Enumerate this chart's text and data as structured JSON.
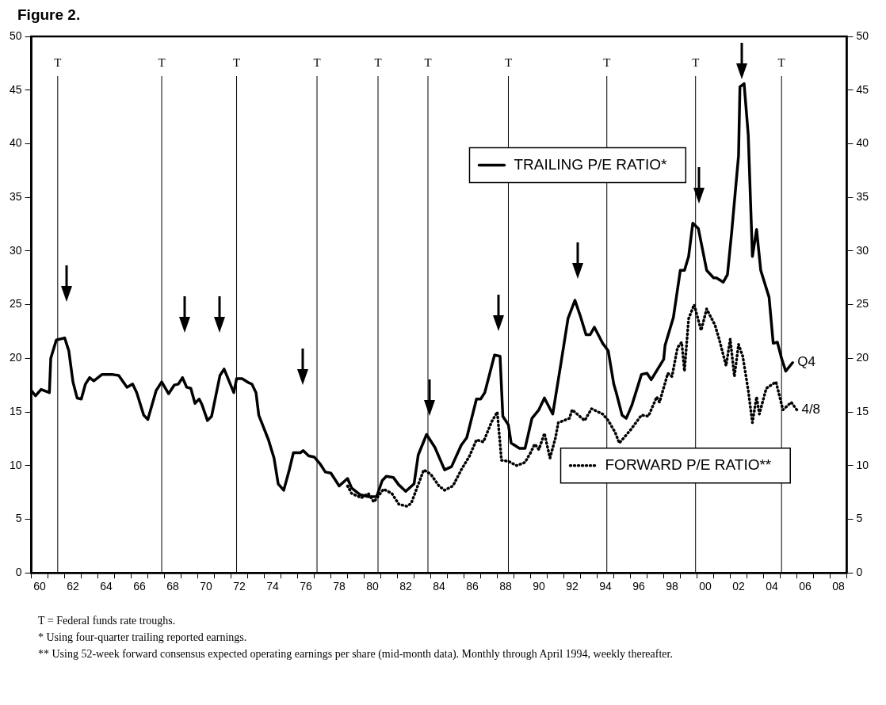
{
  "chart_data": {
    "type": "line",
    "title": "Figure 2.",
    "xlim": [
      "1960",
      "2009"
    ],
    "xticks": [
      {
        "value": "1960",
        "label": null
      },
      {
        "value": "1960-07",
        "label": "60"
      },
      {
        "value": "1961",
        "label": null
      },
      {
        "value": "1962",
        "label": null
      },
      {
        "value": "1962-07",
        "label": "62"
      },
      {
        "value": "1963",
        "label": null
      },
      {
        "value": "1964",
        "label": null
      },
      {
        "value": "1964-07",
        "label": "64"
      },
      {
        "value": "1965",
        "label": null
      },
      {
        "value": "1966",
        "label": null
      },
      {
        "value": "1966-07",
        "label": "66"
      },
      {
        "value": "1967",
        "label": null
      },
      {
        "value": "1968",
        "label": null
      },
      {
        "value": "1968-07",
        "label": "68"
      },
      {
        "value": "1969",
        "label": null
      },
      {
        "value": "1970",
        "label": null
      },
      {
        "value": "1970-07",
        "label": "70"
      },
      {
        "value": "1971",
        "label": null
      },
      {
        "value": "1972",
        "label": null
      },
      {
        "value": "1972-07",
        "label": "72"
      },
      {
        "value": "1973",
        "label": null
      },
      {
        "value": "1974",
        "label": null
      },
      {
        "value": "1974-07",
        "label": "74"
      },
      {
        "value": "1975",
        "label": null
      },
      {
        "value": "1976",
        "label": null
      },
      {
        "value": "1976-07",
        "label": "76"
      },
      {
        "value": "1977",
        "label": null
      },
      {
        "value": "1978",
        "label": null
      },
      {
        "value": "1978-07",
        "label": "78"
      },
      {
        "value": "1979",
        "label": null
      },
      {
        "value": "1980",
        "label": null
      },
      {
        "value": "1980-07",
        "label": "80"
      },
      {
        "value": "1981",
        "label": null
      },
      {
        "value": "1982",
        "label": null
      },
      {
        "value": "1982-07",
        "label": "82"
      },
      {
        "value": "1983",
        "label": null
      },
      {
        "value": "1984",
        "label": null
      },
      {
        "value": "1984-07",
        "label": "84"
      },
      {
        "value": "1985",
        "label": null
      },
      {
        "value": "1986",
        "label": null
      },
      {
        "value": "1986-07",
        "label": "86"
      },
      {
        "value": "1987",
        "label": null
      },
      {
        "value": "1988",
        "label": null
      },
      {
        "value": "1988-07",
        "label": "88"
      },
      {
        "value": "1989",
        "label": null
      },
      {
        "value": "1990",
        "label": null
      },
      {
        "value": "1990-07",
        "label": "90"
      },
      {
        "value": "1991",
        "label": null
      },
      {
        "value": "1992",
        "label": null
      },
      {
        "value": "1992-07",
        "label": "92"
      },
      {
        "value": "1993",
        "label": null
      },
      {
        "value": "1994",
        "label": null
      },
      {
        "value": "1994-07",
        "label": "94"
      },
      {
        "value": "1995",
        "label": null
      },
      {
        "value": "1996",
        "label": null
      },
      {
        "value": "1996-07",
        "label": "96"
      },
      {
        "value": "1997",
        "label": null
      },
      {
        "value": "1998",
        "label": null
      },
      {
        "value": "1998-07",
        "label": "98"
      },
      {
        "value": "1999",
        "label": null
      },
      {
        "value": "2000",
        "label": null
      },
      {
        "value": "2000-07",
        "label": "00"
      },
      {
        "value": "2001",
        "label": null
      },
      {
        "value": "2002",
        "label": null
      },
      {
        "value": "2002-07",
        "label": "02"
      },
      {
        "value": "2003",
        "label": null
      },
      {
        "value": "2004",
        "label": null
      },
      {
        "value": "2004-07",
        "label": "04"
      },
      {
        "value": "2005",
        "label": null
      },
      {
        "value": "2006",
        "label": null
      },
      {
        "value": "2006-07",
        "label": "06"
      },
      {
        "value": "2007",
        "label": null
      },
      {
        "value": "2008",
        "label": null
      },
      {
        "value": "2008-07",
        "label": "08"
      },
      {
        "value": "2009",
        "label": null
      }
    ],
    "ylim": [
      0,
      50
    ],
    "yticks": [
      0,
      5,
      10,
      15,
      20,
      25,
      30,
      35,
      40,
      45,
      50
    ],
    "y2lim": [
      0,
      50
    ],
    "y2ticks": [
      0,
      5,
      10,
      15,
      20,
      25,
      30,
      35,
      40,
      45,
      50
    ],
    "grid": false,
    "legend": "right",
    "marker": "none",
    "series": [
      {
        "name": "TRAILING P/E RATIO*",
        "color": "#000000",
        "line_style": "solid",
        "x": [
          "1960-01",
          "1960-04",
          "1960-08",
          "1961-02",
          "1961-03",
          "1961-07",
          "1962-01",
          "1962-04",
          "1962-07",
          "1962-10",
          "1963-01",
          "1963-04",
          "1963-07",
          "1963-10",
          "1964-04",
          "1964-11",
          "1965-04",
          "1965-10",
          "1966-02",
          "1966-05",
          "1966-10",
          "1967-01",
          "1967-07",
          "1967-11",
          "1968-04",
          "1968-08",
          "1968-11",
          "1969-02",
          "1969-05",
          "1969-08",
          "1969-11",
          "1970-02",
          "1970-04",
          "1970-08",
          "1970-11",
          "1971-05",
          "1971-08",
          "1972-03",
          "1972-05",
          "1972-09",
          "1973-02",
          "1973-04",
          "1973-07",
          "1973-09",
          "1974-04",
          "1974-08",
          "1974-11",
          "1975-03",
          "1975-07",
          "1975-10",
          "1976-03",
          "1976-05",
          "1976-09",
          "1977-01",
          "1977-05",
          "1977-09",
          "1978-01",
          "1978-07",
          "1979-01",
          "1979-04",
          "1979-10",
          "1980-04",
          "1980-10",
          "1981-02",
          "1981-05",
          "1981-10",
          "1982-02",
          "1982-07",
          "1983-01",
          "1983-04",
          "1983-10",
          "1984-04",
          "1984-11",
          "1985-04",
          "1985-11",
          "1986-03",
          "1986-10",
          "1987-01",
          "1987-04",
          "1987-11",
          "1988-03",
          "1988-05",
          "1988-09",
          "1988-11",
          "1989-05",
          "1989-09",
          "1990-02",
          "1990-07",
          "1990-11",
          "1991-05",
          "1991-11",
          "1992-04",
          "1992-09",
          "1993-01",
          "1993-05",
          "1993-08",
          "1993-11",
          "1994-05",
          "1994-09",
          "1995-01",
          "1995-03",
          "1995-07",
          "1995-10",
          "1996-02",
          "1996-09",
          "1997-01",
          "1997-04",
          "1998-01",
          "1998-02",
          "1998-08",
          "1999-01",
          "1999-04",
          "1999-07",
          "1999-10",
          "2000-02",
          "2000-08",
          "2001-01",
          "2001-03",
          "2001-08",
          "2001-11",
          "2002-02",
          "2002-07",
          "2002-08",
          "2002-11",
          "2003-02",
          "2003-05",
          "2003-08",
          "2003-11",
          "2004-05",
          "2004-08",
          "2004-11",
          "2005-02",
          "2005-05",
          "2005-10"
        ],
        "values": [
          17.0,
          16.5,
          17.1,
          16.8,
          20.0,
          21.7,
          21.9,
          20.7,
          17.8,
          16.3,
          16.2,
          17.6,
          18.2,
          17.9,
          18.5,
          18.5,
          18.4,
          17.3,
          17.6,
          16.8,
          14.7,
          14.3,
          17.0,
          17.8,
          16.7,
          17.5,
          17.6,
          18.2,
          17.3,
          17.2,
          15.8,
          16.2,
          15.7,
          14.2,
          14.6,
          18.4,
          19.0,
          16.8,
          18.1,
          18.1,
          17.7,
          17.6,
          16.8,
          14.7,
          12.4,
          10.7,
          8.3,
          7.7,
          9.6,
          11.2,
          11.2,
          11.4,
          10.9,
          10.8,
          10.2,
          9.4,
          9.3,
          8.1,
          8.8,
          7.9,
          7.3,
          7.1,
          7.1,
          8.6,
          9.0,
          8.9,
          8.2,
          7.6,
          8.3,
          11.0,
          12.9,
          11.7,
          9.6,
          9.9,
          11.9,
          12.6,
          16.2,
          16.2,
          16.8,
          20.3,
          20.2,
          14.6,
          13.8,
          12.1,
          11.6,
          11.6,
          14.4,
          15.2,
          16.3,
          14.8,
          19.6,
          23.7,
          25.4,
          23.9,
          22.2,
          22.2,
          22.9,
          21.4,
          20.7,
          17.6,
          16.7,
          14.7,
          14.4,
          15.6,
          18.5,
          18.6,
          18.0,
          19.9,
          21.2,
          23.8,
          28.2,
          28.2,
          29.5,
          32.6,
          32.1,
          28.2,
          27.5,
          27.5,
          27.1,
          27.8,
          31.7,
          38.9,
          45.3,
          45.6,
          40.8,
          29.5,
          32.0,
          28.2,
          25.7,
          21.4,
          21.5,
          20.0,
          18.8,
          19.6
        ]
      },
      {
        "name": "FORWARD P/E RATIO**",
        "color": "#000000",
        "line_style": "dotted",
        "x": [
          "1979-01",
          "1979-04",
          "1979-11",
          "1980-04",
          "1980-08",
          "1981-03",
          "1981-09",
          "1982-02",
          "1982-08",
          "1982-11",
          "1983-03",
          "1983-08",
          "1984-01",
          "1984-07",
          "1984-11",
          "1985-05",
          "1985-11",
          "1986-05",
          "1986-10",
          "1987-03",
          "1987-09",
          "1988-01",
          "1988-03",
          "1988-04",
          "1988-09",
          "1989-03",
          "1989-09",
          "1990-01",
          "1990-04",
          "1990-07",
          "1990-11",
          "1991-03",
          "1991-07",
          "1991-09",
          "1992-05",
          "1992-07",
          "1993-04",
          "1993-09",
          "1994-05",
          "1994-09",
          "1995-02",
          "1995-05",
          "1996-01",
          "1996-09",
          "1997-02",
          "1997-08",
          "1997-10",
          "1998-04",
          "1998-07",
          "1998-11",
          "1999-02",
          "1999-04",
          "1999-07",
          "1999-11",
          "2000-04",
          "2000-08",
          "2001-02",
          "2001-05",
          "2001-10",
          "2002-01",
          "2002-04",
          "2002-07",
          "2002-10",
          "2003-02",
          "2003-05",
          "2003-08",
          "2003-10",
          "2004-03",
          "2004-10",
          "2005-03",
          "2005-09",
          "2006-01"
        ],
        "values": [
          8.1,
          7.4,
          7.0,
          7.4,
          6.6,
          7.8,
          7.4,
          6.4,
          6.2,
          6.5,
          7.9,
          9.6,
          9.2,
          8.1,
          7.7,
          8.1,
          9.6,
          10.9,
          12.4,
          12.2,
          14.1,
          15.0,
          12.1,
          10.5,
          10.4,
          10.0,
          10.3,
          11.2,
          12.0,
          11.5,
          13.0,
          10.7,
          12.6,
          14.0,
          14.4,
          15.2,
          14.2,
          15.3,
          14.8,
          14.2,
          13.1,
          12.1,
          13.3,
          14.7,
          14.6,
          16.4,
          15.9,
          18.6,
          18.3,
          21.0,
          21.5,
          18.8,
          23.7,
          25.0,
          22.6,
          24.6,
          23.1,
          21.8,
          19.3,
          21.8,
          18.3,
          21.3,
          20.2,
          17.0,
          14.0,
          16.4,
          14.8,
          17.2,
          17.8,
          15.2,
          15.9,
          15.2
        ]
      }
    ],
    "ref_lines": [
      {
        "axis": "x",
        "value": "1961-08",
        "label": "T"
      },
      {
        "axis": "x",
        "value": "1967-11",
        "label": "T"
      },
      {
        "axis": "x",
        "value": "1972-05",
        "label": "T"
      },
      {
        "axis": "x",
        "value": "1977-03",
        "label": "T"
      },
      {
        "axis": "x",
        "value": "1980-11",
        "label": "T"
      },
      {
        "axis": "x",
        "value": "1983-11",
        "label": "T"
      },
      {
        "axis": "x",
        "value": "1988-09",
        "label": "T"
      },
      {
        "axis": "x",
        "value": "1994-08",
        "label": "T"
      },
      {
        "axis": "x",
        "value": "1999-12",
        "label": "T"
      },
      {
        "axis": "x",
        "value": "2005-02",
        "label": "T"
      }
    ],
    "annotations": [
      {
        "text": "Q4",
        "x": "2005-10",
        "y": 19.6
      },
      {
        "text": "4/8",
        "x": "2006-01",
        "y": 15.2
      },
      "T = Federal funds rate troughs.",
      "*  Using four-quarter trailing reported earnings.",
      "**  Using 52-week forward consensus expected operating earnings per share (mid-month data). Monthly through April 1994, weekly thereafter."
    ]
  }
}
